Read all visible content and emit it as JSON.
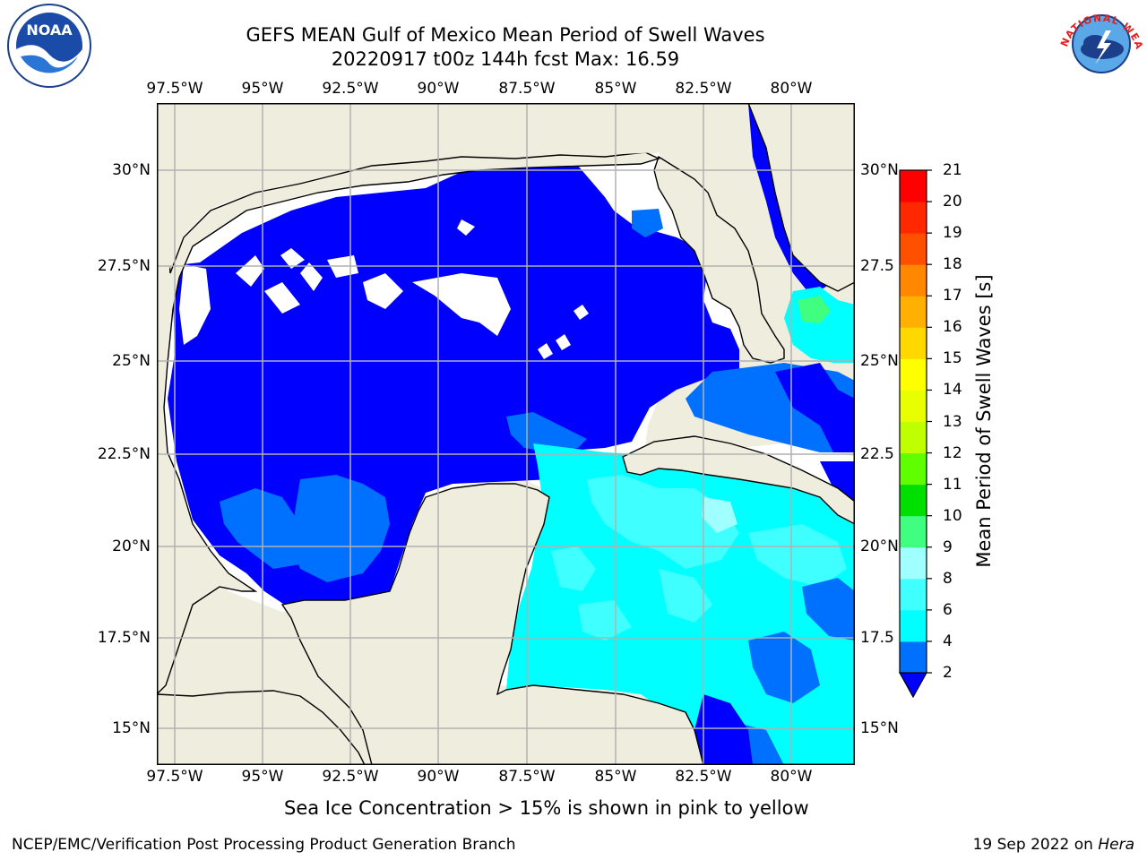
{
  "title": "GEFS MEAN Gulf of Mexico Mean Period of Swell Waves",
  "subtitle": "20220917 t00z 144h fcst   Max: 16.59",
  "lon_labels_top": [
    "97.5°W",
    "95°W",
    "92.5°W",
    "90°W",
    "87.5°W",
    "85°W",
    "82.5°W",
    "80°W"
  ],
  "lon_labels_bottom": [
    "97.5°W",
    "95°W",
    "92.5°W",
    "90°W",
    "87.5°W",
    "85°W",
    "82.5°W",
    "80°W"
  ],
  "lat_labels_left": [
    "30°N",
    "27.5°N",
    "25°N",
    "22.5°N",
    "20°N",
    "17.5°N",
    "15°N"
  ],
  "lat_labels_right": [
    "30°N",
    "27.5",
    "25°N",
    "22.5",
    "20°N",
    "17.5",
    "15°N"
  ],
  "colorbar": {
    "title": "Mean Period of Swell Waves [s]",
    "ticks": [
      "2",
      "4",
      "6",
      "8",
      "9",
      "10",
      "11",
      "12",
      "13",
      "14",
      "15",
      "16",
      "17",
      "18",
      "19",
      "20",
      "21"
    ],
    "colors": [
      "#0000ff",
      "#0070ff",
      "#00ffff",
      "#40ffff",
      "#a0ffff",
      "#40ff80",
      "#00e000",
      "#60ff00",
      "#c0ff00",
      "#e8ff00",
      "#ffff00",
      "#ffd800",
      "#ffb000",
      "#ff8800",
      "#ff5000",
      "#ff2800",
      "#ff0000"
    ]
  },
  "note": "Sea Ice Concentration > 15% is shown in pink to yellow",
  "credit": "NCEP/EMC/Verification Post Processing Product Generation Branch",
  "date_prefix": "19 Sep 2022 on ",
  "date_machine": "Hera",
  "logos": {
    "left": "noaa-logo",
    "right": "national-weather-service-logo",
    "noaa_text": "NOAA",
    "nws_text": "NATIONAL WEATHER SERVICE"
  },
  "map_colors": {
    "land": "#efeede",
    "gulf_swell": "#0000ff",
    "caribbean_swell": "#00ffff",
    "pacific_swell": "#e8ff00",
    "grid": "#b0b0b0"
  }
}
